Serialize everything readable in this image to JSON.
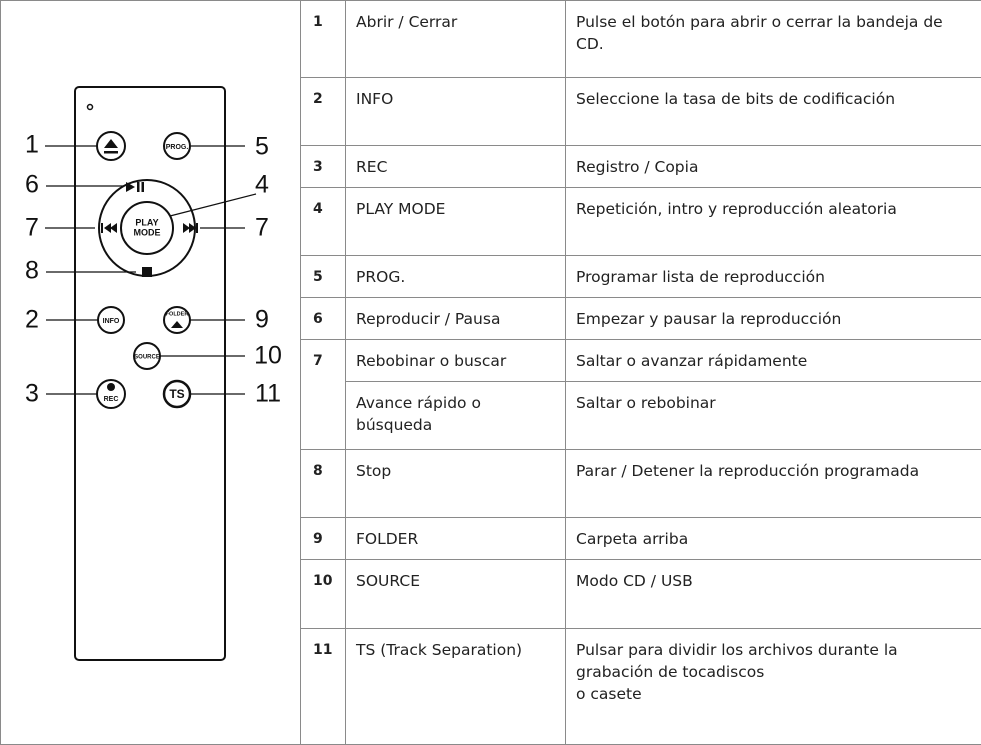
{
  "diagram": {
    "callouts": [
      "1",
      "5",
      "6",
      "4",
      "7",
      "7",
      "8",
      "2",
      "9",
      "10",
      "3",
      "11"
    ],
    "buttons": {
      "prog": "PROG.",
      "play": "PLAY",
      "mode": "MODE",
      "info": "INFO",
      "folder": "FOLDER",
      "source": "SOURCE",
      "rec": "REC",
      "ts": "TS"
    }
  },
  "table": {
    "rows": [
      {
        "number": "1",
        "name": "Abrir / Cerrar",
        "description": "Pulse el botón para abrir o cerrar la bandeja de CD."
      },
      {
        "number": "2",
        "name": "INFO",
        "description": "Seleccione la tasa de bits de codificación"
      },
      {
        "number": "3",
        "name": "REC",
        "description": "Registro / Copia"
      },
      {
        "number": "4",
        "name": "PLAY MODE",
        "description": "Repetición, intro y reproducción aleatoria"
      },
      {
        "number": "5",
        "name": "PROG.",
        "description": "Programar lista de reproducción"
      },
      {
        "number": "6",
        "name": "Reproducir / Pausa",
        "description": "Empezar y pausar la reproducción"
      },
      {
        "number": "7",
        "name": "Rebobinar o buscar",
        "description": "Saltar o avanzar rápidamente"
      },
      {
        "name": "Avance rápido o búsqueda",
        "description": "Saltar o rebobinar"
      },
      {
        "number": "8",
        "name": "Stop",
        "description": "Parar / Detener la reproducción programada"
      },
      {
        "number": "9",
        "name": "FOLDER",
        "description": "Carpeta arriba"
      },
      {
        "number": "10",
        "name": "SOURCE",
        "description": "Modo CD / USB"
      },
      {
        "number": "11",
        "name": "TS (Track Separation)",
        "description": "Pulsar para dividir los archivos durante la grabación de tocadiscos\no casete"
      }
    ]
  }
}
